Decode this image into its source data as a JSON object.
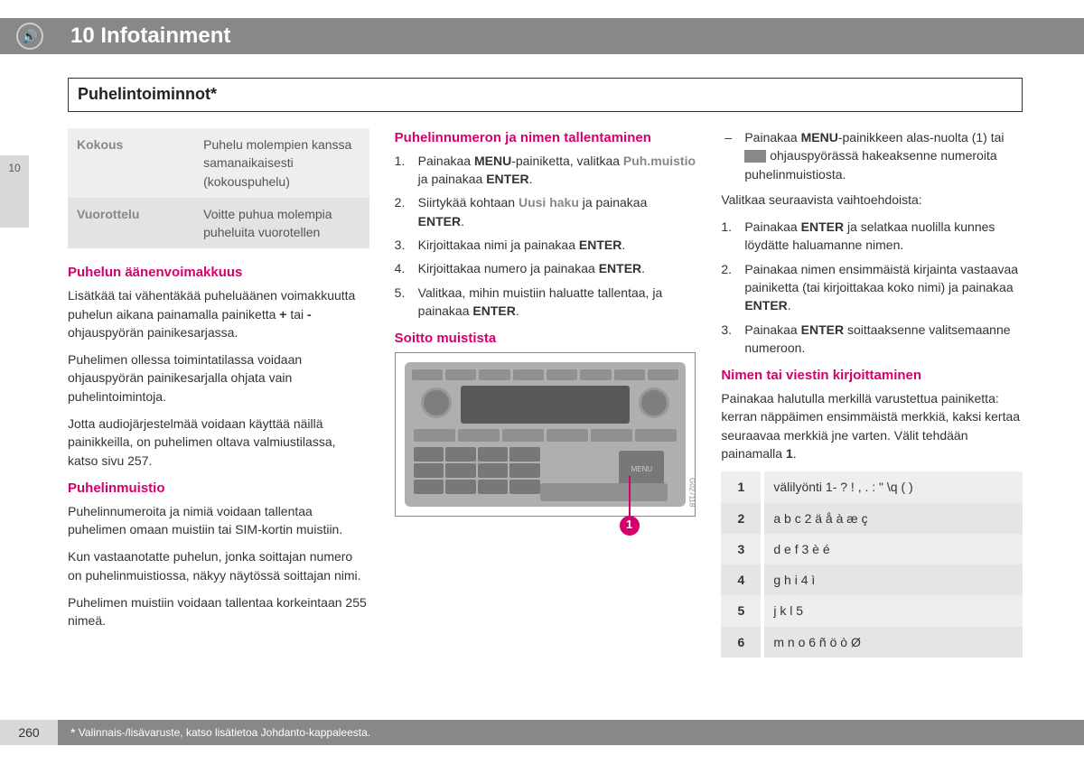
{
  "colors": {
    "header_bg": "#888888",
    "accent": "#d6006c",
    "light_gray": "#eeeeee",
    "mid_gray": "#e3e3e3",
    "side_tab": "#d8d8d8",
    "text": "#333333"
  },
  "header": {
    "chapter_title": "10 Infotainment",
    "speaker_glyph": "🔊"
  },
  "section_title": "Puhelintoiminnot*",
  "side_tab": "10",
  "col1": {
    "def_table": [
      {
        "term": "Kokous",
        "desc": "Puhelu molempien kanssa samanaikaisesti (kokouspuhelu)"
      },
      {
        "term": "Vuorottelu",
        "desc": "Voitte puhua molempia puheluita vuorotellen"
      }
    ],
    "sec_vol": {
      "title": "Puhelun äänenvoimakkuus",
      "p1_pre": "Lisätkää tai vähentäkää puheluäänen voimakkuutta puhelun aikana painamalla painiketta ",
      "plus": "+",
      "p1_mid": " tai ",
      "minus": "-",
      "p1_post": " ohjauspyörän painikesarjassa.",
      "p2": "Puhelimen ollessa toimintatilassa voidaan ohjauspyörän painikesarjalla ohjata vain puhelintoimintoja.",
      "p3": "Jotta audiojärjestelmää voidaan käyttää näillä painikkeilla, on puhelimen oltava valmiustilassa, katso sivu 257."
    },
    "sec_mem": {
      "title": "Puhelinmuistio",
      "p1": "Puhelinnumeroita ja nimiä voidaan tallentaa puhelimen omaan muistiin tai SIM-kortin muistiin.",
      "p2": "Kun vastaanotatte puhelun, jonka soittajan numero on puhelinmuistiossa, näkyy näytössä soittajan nimi.",
      "p3": "Puhelimen muistiin voidaan tallentaa korkeintaan 255 nimeä."
    }
  },
  "col2": {
    "sec_save": {
      "title": "Puhelinnumeron ja nimen tallentaminen",
      "items": [
        {
          "pre": "Painakaa ",
          "b1": "MENU",
          "mid1": "-painiketta, valitkaa ",
          "g": "Puh.muistio",
          "mid2": " ja painakaa ",
          "b2": "ENTER",
          "post": "."
        },
        {
          "pre": "Siirtykää kohtaan ",
          "g": "Uusi haku",
          "mid2": " ja painakaa ",
          "b2": "ENTER",
          "post": "."
        },
        {
          "pre": "Kirjoittakaa nimi ja painakaa ",
          "b2": "ENTER",
          "post": "."
        },
        {
          "pre": "Kirjoittakaa numero ja painakaa ",
          "b2": "ENTER",
          "post": "."
        },
        {
          "pre": "Valitkaa, mihin muistiin haluatte tallentaa, ja painakaa ",
          "b2": "ENTER",
          "post": "."
        }
      ]
    },
    "sec_dial": {
      "title": "Soitto muistista",
      "fig_code": "G027118",
      "callout": "1"
    }
  },
  "col3": {
    "dash_item": {
      "pre": "Painakaa ",
      "b": "MENU",
      "post": "-painikkeen alas-nuolta (1) tai ",
      "tail": " ohjauspyörässä hakeaksenne numeroita puhelinmuistiosta."
    },
    "opt_intro": "Valitkaa seuraavista vaihtoehdoista:",
    "options": [
      {
        "pre": "Painakaa ",
        "b": "ENTER",
        "post": " ja selatkaa nuolilla kunnes löydätte haluamanne nimen."
      },
      {
        "pre": "Painakaa nimen ensimmäistä kirjainta vastaavaa painiketta (tai kirjoittakaa koko nimi) ja painakaa ",
        "b": "ENTER",
        "post": "."
      },
      {
        "pre": "Painakaa ",
        "b": "ENTER",
        "post": " soittaaksenne valitsemaanne numeroon."
      }
    ],
    "sec_write": {
      "title": "Nimen tai viestin kirjoittaminen",
      "p_pre": "Painakaa halutulla merkillä varustettua painiketta: kerran näppäimen ensimmäistä merkkiä, kaksi kertaa seuraavaa merkkiä jne varten. Välit tehdään painamalla ",
      "b": "1",
      "p_post": "."
    },
    "char_table": [
      {
        "k": "1",
        "v": "välilyönti 1- ? ! , . : \" \\q ( )"
      },
      {
        "k": "2",
        "v": "a b c 2 ä å à æ ç"
      },
      {
        "k": "3",
        "v": "d e f 3 è é"
      },
      {
        "k": "4",
        "v": "g h i 4 ì"
      },
      {
        "k": "5",
        "v": "j k l 5"
      },
      {
        "k": "6",
        "v": "m n o 6 ñ ö ò Ø"
      }
    ]
  },
  "footer": {
    "page": "260",
    "note": "Valinnais-/lisävaruste, katso lisätietoa Johdanto-kappaleesta."
  }
}
